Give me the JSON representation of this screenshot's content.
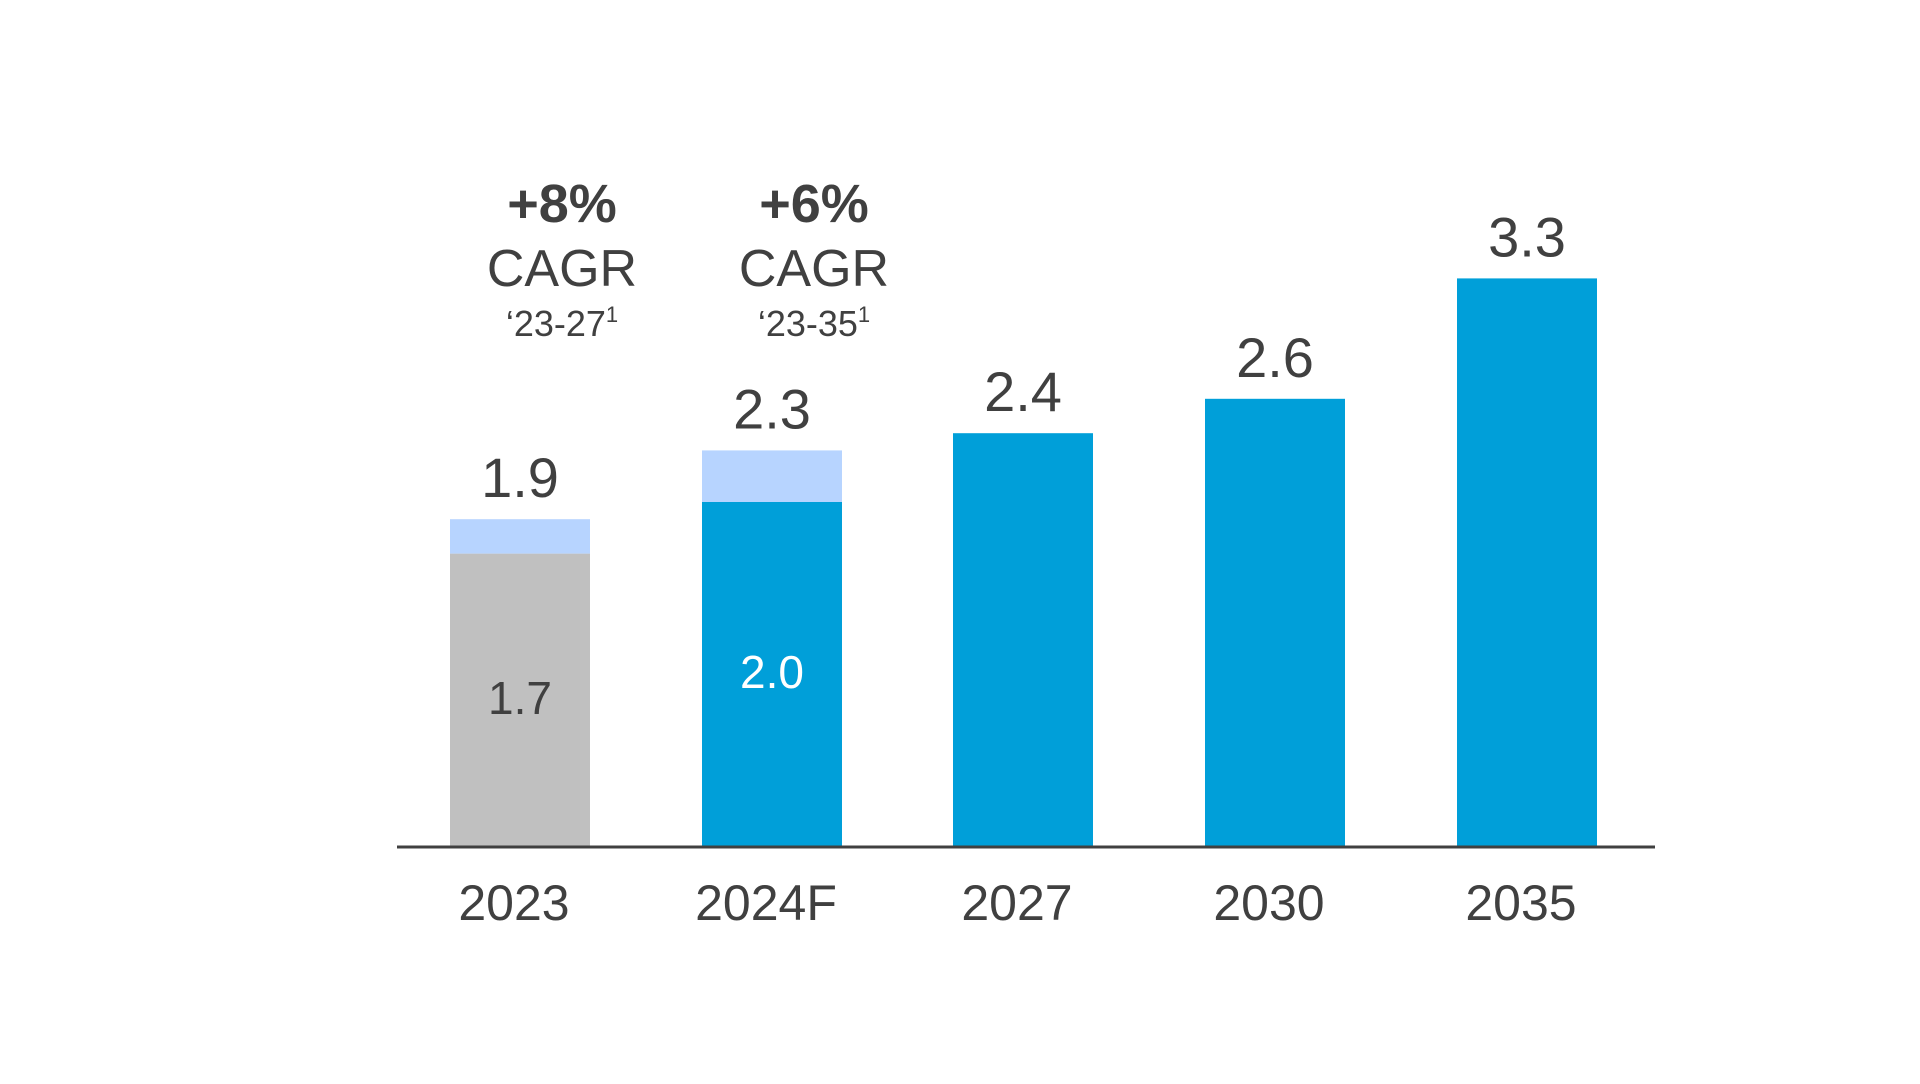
{
  "chart_data": {
    "type": "bar",
    "title": "",
    "xlabel": "",
    "ylabel": "",
    "categories": [
      "2023",
      "2024F",
      "2027",
      "2030",
      "2035"
    ],
    "totals": [
      1.9,
      2.3,
      2.4,
      2.6,
      3.3
    ],
    "total_labels": [
      "1.9",
      "2.3",
      "2.4",
      "2.6",
      "3.3"
    ],
    "base_values": [
      1.7,
      2.0,
      2.4,
      2.6,
      3.3
    ],
    "base_labels": [
      "1.7",
      "2.0",
      "",
      "",
      ""
    ],
    "base_colors": [
      "#c0c0c0",
      "#009fd9",
      "#009fd9",
      "#009fd9",
      "#009fd9"
    ],
    "base_label_colors": [
      "#404040",
      "#ffffff",
      "#ffffff",
      "#ffffff",
      "#ffffff"
    ],
    "top_segment_color": "#b7d4ff",
    "ylim": [
      0,
      3.6
    ],
    "grid": false,
    "annotations": [
      {
        "category": "2023",
        "value": "+8%",
        "text": "CAGR",
        "period": "‘23-27",
        "footnote": "1"
      },
      {
        "category": "2024F",
        "value": "+6%",
        "text": "CAGR",
        "period": "‘23-35",
        "footnote": "1"
      }
    ]
  },
  "colors": {
    "axis": "#404040",
    "text": "#404040"
  }
}
